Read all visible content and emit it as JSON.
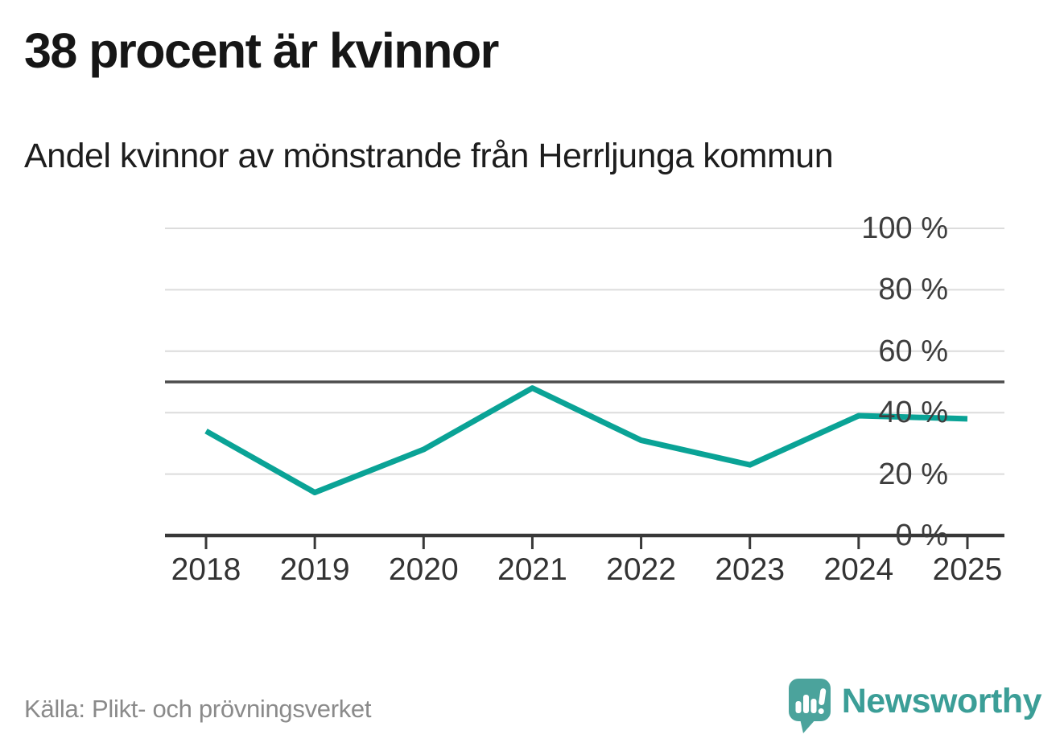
{
  "header": {
    "title": "38 procent är kvinnor",
    "subtitle": "Andel kvinnor av mönstrande från Herrljunga kommun"
  },
  "footer": {
    "source": "Källa: Plikt- och prövningsverket",
    "brand": {
      "name": "Newsworthy",
      "logo_icon": "speech-bubble-bar-chart-icon"
    }
  },
  "colors": {
    "series_line": "#0aa396",
    "reference_line": "#4d4d4d",
    "grid": "#dcdcdc",
    "axis": "#383838",
    "title_text": "#161616",
    "axis_text": "#3d3d3d",
    "muted_text": "#8a8a8a",
    "brand_icon": "#4ba39c",
    "brand_text": "#3b9e97"
  },
  "chart_data": {
    "type": "line",
    "title": "38 procent är kvinnor",
    "subtitle": "Andel kvinnor av mönstrande från Herrljunga kommun",
    "x": [
      2018,
      2019,
      2020,
      2021,
      2022,
      2023,
      2024,
      2025
    ],
    "x_tick_labels": [
      "2018",
      "2019",
      "2020",
      "2021",
      "2022",
      "2023",
      "2024",
      "2025"
    ],
    "series": [
      {
        "name": "Andel kvinnor av mönstrande",
        "color": "#0aa396",
        "values": [
          34,
          14,
          28,
          48,
          31,
          23,
          39,
          38
        ]
      }
    ],
    "unit": "%",
    "ylim": [
      0,
      100
    ],
    "y_ticks": [
      0,
      20,
      40,
      60,
      80,
      100
    ],
    "y_tick_labels": [
      "0 %",
      "20 %",
      "40 %",
      "60 %",
      "80 %",
      "100 %"
    ],
    "reference_line": {
      "value": 50
    },
    "grid": "horizontal",
    "legend": "none"
  }
}
